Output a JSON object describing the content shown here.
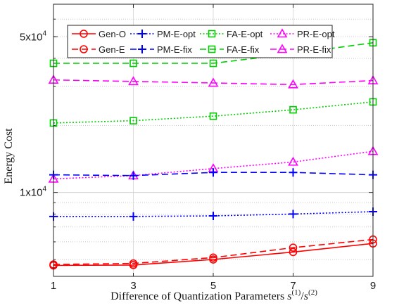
{
  "chart_data": {
    "type": "line",
    "xlabel": "Difference of Quantization Parameters s(1)/s(2)",
    "xlabel_parts": {
      "main": "Difference of Quantization Parameters ",
      "s": "s",
      "sup1": "(1)",
      "slash": "/",
      "sup2": "(2)"
    },
    "ylabel": "Energy Cost",
    "y_scale": "log",
    "xlim": [
      1,
      9
    ],
    "ylim": [
      4200,
      70000
    ],
    "x_ticks": [
      1,
      3,
      5,
      7,
      9
    ],
    "y_tick_labels": [
      {
        "value": 10000,
        "label": "1x10",
        "exp": "4"
      },
      {
        "value": 50000,
        "label": "5x10",
        "exp": "4"
      }
    ],
    "grid": true,
    "legend_position": "top",
    "x": [
      1,
      3,
      5,
      7,
      9
    ],
    "series": [
      {
        "name": "Gen-O",
        "color": "#ff0000",
        "dash": "solid",
        "marker": "circle",
        "values": [
          4700,
          4720,
          5000,
          5400,
          5900
        ]
      },
      {
        "name": "PM-E-opt",
        "color": "#0000ff",
        "dash": "dotted",
        "marker": "plus",
        "values": [
          7800,
          7800,
          7850,
          8000,
          8200
        ]
      },
      {
        "name": "FA-E-opt",
        "color": "#00cc00",
        "dash": "dotted",
        "marker": "square",
        "values": [
          20500,
          21000,
          22000,
          23500,
          25500
        ]
      },
      {
        "name": "PR-E-opt",
        "color": "#ff00ff",
        "dash": "dotted",
        "marker": "triangle",
        "values": [
          11500,
          11900,
          12800,
          13700,
          15300
        ]
      },
      {
        "name": "Gen-E",
        "color": "#ff0000",
        "dash": "dashed",
        "marker": "circle",
        "values": [
          4750,
          4800,
          5100,
          5650,
          6150
        ]
      },
      {
        "name": "PM-E-fix",
        "color": "#0000ff",
        "dash": "dashed",
        "marker": "plus",
        "values": [
          12000,
          11900,
          12300,
          12300,
          12000
        ]
      },
      {
        "name": "FA-E-fix",
        "color": "#00cc00",
        "dash": "dashed",
        "marker": "square",
        "values": [
          38000,
          38000,
          38000,
          42000,
          47000
        ]
      },
      {
        "name": "PR-E-fix",
        "color": "#ff00ff",
        "dash": "dashed",
        "marker": "triangle",
        "values": [
          32000,
          31500,
          31000,
          30500,
          31800
        ]
      }
    ]
  }
}
